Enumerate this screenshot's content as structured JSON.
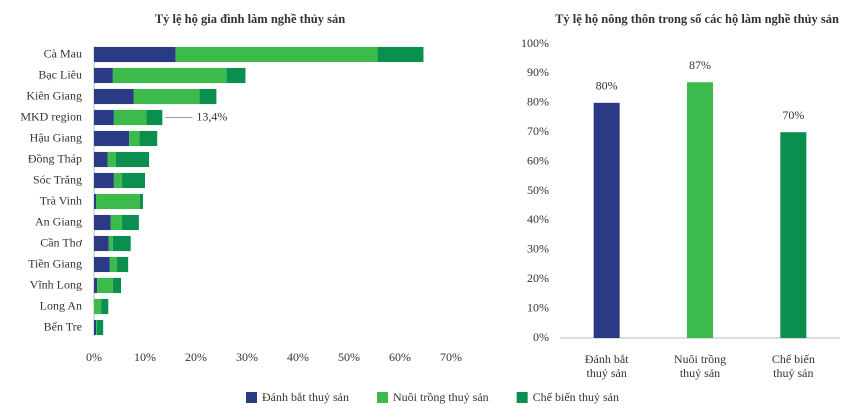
{
  "chart_data": [
    {
      "type": "hbar-stacked",
      "title": "Tỷ lệ hộ gia đình làm nghề thủy sản",
      "categories": [
        "Cà Mau",
        "Bạc Liêu",
        "Kiên Giang",
        "MKD region",
        "Hậu Giang",
        "Đồng Tháp",
        "Sóc Trăng",
        "Trà Vinh",
        "An Giang",
        "Cần Thơ",
        "Tiền Giang",
        "Vĩnh Long",
        "Long An",
        "Bến Tre"
      ],
      "series": [
        {
          "name": "Đánh bắt thuỷ sản",
          "color": "#2b3a85",
          "values": [
            16,
            3.7,
            7.8,
            3.9,
            6.9,
            2.7,
            3.9,
            0.4,
            3.3,
            2.9,
            3.1,
            0.6,
            0,
            0.4
          ]
        },
        {
          "name": "Nuôi trồng thuỷ sản",
          "color": "#3cbb4c",
          "values": [
            39.6,
            22.3,
            12.9,
            6.4,
            2,
            1.6,
            1.6,
            8.6,
            2.2,
            0.8,
            1.4,
            3.1,
            1.4,
            0.2
          ]
        },
        {
          "name": "Chế biến thuỷ sản",
          "color": "#0a8f4e",
          "values": [
            9,
            3.7,
            3.3,
            3.1,
            3.5,
            6.5,
            4.5,
            0.6,
            3.3,
            3.5,
            2.2,
            1.6,
            1.4,
            1.2
          ]
        }
      ],
      "total_labels": [
        null,
        null,
        null,
        "13,4%",
        null,
        null,
        null,
        null,
        null,
        null,
        null,
        null,
        null,
        null
      ],
      "xlim": [
        0,
        70
      ],
      "xticks": [
        {
          "value": 0,
          "label": "0%"
        },
        {
          "value": 10,
          "label": "10%"
        },
        {
          "value": 20,
          "label": "20%"
        },
        {
          "value": 30,
          "label": "30%"
        },
        {
          "value": 40,
          "label": "40%"
        },
        {
          "value": 50,
          "label": "50%"
        },
        {
          "value": 60,
          "label": "60%"
        },
        {
          "value": 70,
          "label": "70%"
        }
      ],
      "legend": "bottom"
    },
    {
      "type": "bar",
      "title": "Tỷ lệ hộ nông thôn trong số các hộ làm nghề thủy sản",
      "categories": [
        "Đánh bắt thuỷ sản",
        "Nuôi trồng thuỷ sản",
        "Chế biến thuỷ sản"
      ],
      "values": [
        80,
        87,
        70
      ],
      "value_labels": [
        "80%",
        "87%",
        "70%"
      ],
      "colors": [
        "#2b3a85",
        "#3cbb4c",
        "#0a8f4e"
      ],
      "ylim": [
        0,
        100
      ],
      "yticks": [
        {
          "value": 0,
          "label": "0%"
        },
        {
          "value": 10,
          "label": "10%"
        },
        {
          "value": 20,
          "label": "20%"
        },
        {
          "value": 30,
          "label": "30%"
        },
        {
          "value": 40,
          "label": "40%"
        },
        {
          "value": 50,
          "label": "50%"
        },
        {
          "value": 60,
          "label": "60%"
        },
        {
          "value": 70,
          "label": "70%"
        },
        {
          "value": 80,
          "label": "80%"
        },
        {
          "value": 90,
          "label": "90%"
        },
        {
          "value": 100,
          "label": "100%"
        }
      ]
    }
  ]
}
